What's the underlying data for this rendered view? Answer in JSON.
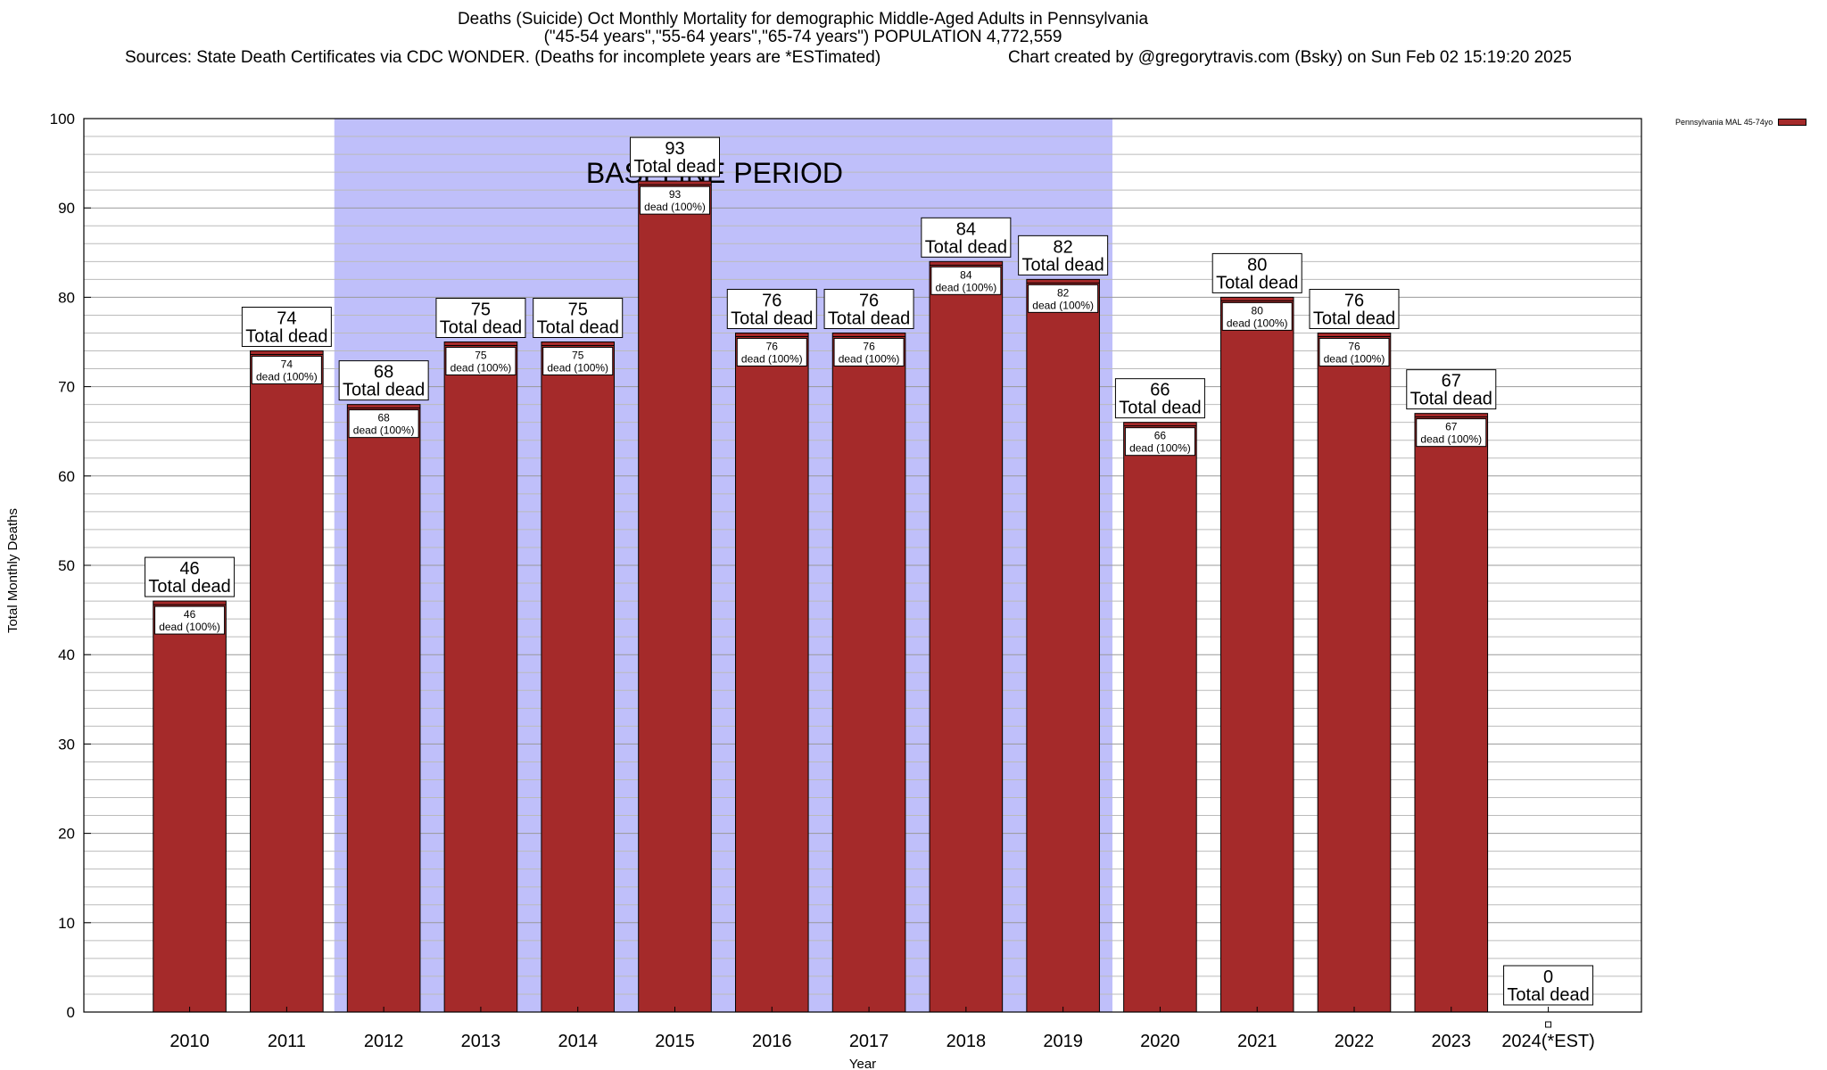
{
  "chart_data": {
    "type": "bar",
    "title_lines": [
      "Deaths (Suicide) Oct Monthly Mortality for demographic Middle-Aged Adults in Pennsylvania",
      "(\"45-54 years\",\"55-64 years\",\"65-74 years\") POPULATION 4,772,559"
    ],
    "sources_text": "Sources: State Death Certificates via CDC WONDER. (Deaths for incomplete years are *ESTimated)",
    "credit_text": "Chart created by @gregorytravis.com (Bsky) on Sun Feb 02 15:19:20 2025",
    "xlabel": "Year",
    "ylabel": "Total Monthly Deaths",
    "ylim": [
      0,
      100
    ],
    "yticks": [
      0,
      10,
      20,
      30,
      40,
      50,
      60,
      70,
      80,
      90,
      100
    ],
    "grid": true,
    "legend_position": "top-right",
    "baseline_label": "BASELINE PERIOD",
    "baseline_range": [
      "2012",
      "2019"
    ],
    "total_label_word": "Total dead",
    "bar_label_suffix": "dead (100%)",
    "categories": [
      "2010",
      "2011",
      "2012",
      "2013",
      "2014",
      "2015",
      "2016",
      "2017",
      "2018",
      "2019",
      "2020",
      "2021",
      "2022",
      "2023",
      "2024(*EST)"
    ],
    "series": [
      {
        "name": "Pennsylvania MAL 45-74yo",
        "values": [
          46,
          74,
          68,
          75,
          75,
          93,
          76,
          76,
          84,
          82,
          66,
          80,
          76,
          67,
          0
        ]
      }
    ],
    "colors": {
      "bar": "#a52a2a",
      "baseline": "#bfbffa",
      "grid": "#bbbbbb"
    }
  }
}
